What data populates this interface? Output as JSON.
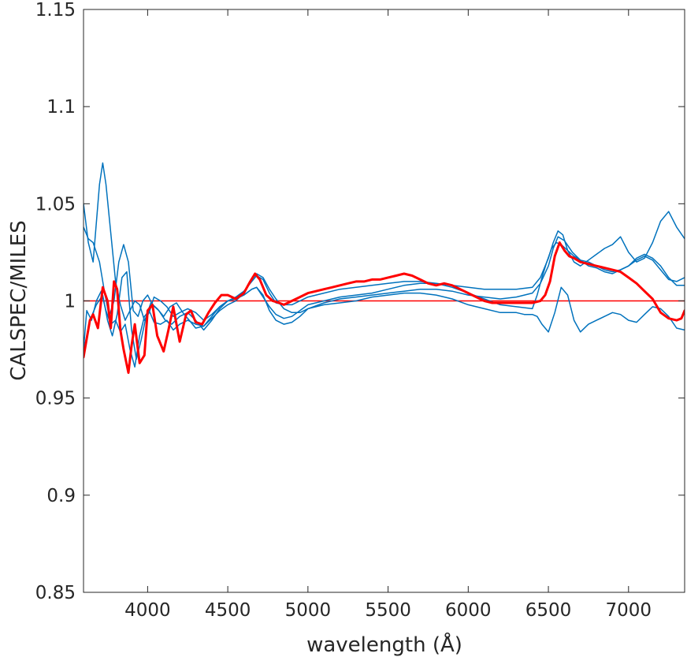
{
  "chart_data": {
    "type": "line",
    "title": "",
    "xlabel": "wavelength  (Å)",
    "ylabel": "CALSPEC/MILES",
    "xlim": [
      3600,
      7350
    ],
    "ylim": [
      0.85,
      1.15
    ],
    "xticks": [
      4000,
      4500,
      5000,
      5500,
      6000,
      6500,
      7000
    ],
    "xtick_labels": [
      "4000",
      "4500",
      "5000",
      "5500",
      "6000",
      "6500",
      "7000"
    ],
    "yticks": [
      0.85,
      0.9,
      0.95,
      1.0,
      1.05,
      1.1,
      1.15
    ],
    "ytick_labels": [
      "0.85",
      "0.9",
      "0.95",
      "1",
      "1.05",
      "1.1",
      "1.15"
    ],
    "grid": false,
    "box": true,
    "reference_line": {
      "y": 1.0,
      "color": "#ff0000"
    },
    "series": [
      {
        "color": "#ff0000",
        "linewidth": 3,
        "x": [
          3600,
          3640,
          3660,
          3690,
          3720,
          3750,
          3770,
          3790,
          3810,
          3830,
          3850,
          3880,
          3900,
          3920,
          3950,
          3980,
          4000,
          4030,
          4060,
          4100,
          4130,
          4160,
          4200,
          4240,
          4270,
          4300,
          4340,
          4380,
          4420,
          4460,
          4500,
          4550,
          4600,
          4640,
          4670,
          4700,
          4740,
          4780,
          4820,
          4850,
          4900,
          4950,
          5000,
          5050,
          5100,
          5150,
          5200,
          5250,
          5300,
          5350,
          5400,
          5450,
          5500,
          5550,
          5600,
          5650,
          5700,
          5750,
          5800,
          5850,
          5900,
          5950,
          6000,
          6050,
          6100,
          6150,
          6200,
          6250,
          6300,
          6350,
          6400,
          6450,
          6480,
          6510,
          6540,
          6570,
          6600,
          6630,
          6660,
          6700,
          6750,
          6800,
          6850,
          6900,
          6950,
          7000,
          7050,
          7100,
          7150,
          7200,
          7250,
          7300,
          7330,
          7350
        ],
        "y": [
          0.971,
          0.99,
          0.993,
          0.986,
          1.007,
          1.0,
          0.986,
          1.01,
          1.006,
          0.985,
          0.975,
          0.963,
          0.977,
          0.988,
          0.968,
          0.972,
          0.995,
          0.998,
          0.982,
          0.974,
          0.985,
          0.997,
          0.979,
          0.993,
          0.995,
          0.989,
          0.988,
          0.994,
          0.999,
          1.003,
          1.003,
          1.001,
          1.004,
          1.01,
          1.014,
          1.011,
          1.003,
          1.0,
          0.999,
          0.998,
          1.0,
          1.002,
          1.004,
          1.005,
          1.006,
          1.007,
          1.008,
          1.009,
          1.01,
          1.01,
          1.011,
          1.011,
          1.012,
          1.013,
          1.014,
          1.013,
          1.011,
          1.009,
          1.008,
          1.009,
          1.008,
          1.006,
          1.004,
          1.002,
          1.0,
          0.999,
          0.999,
          0.999,
          0.999,
          0.999,
          0.999,
          1.0,
          1.003,
          1.01,
          1.023,
          1.03,
          1.026,
          1.023,
          1.022,
          1.02,
          1.019,
          1.018,
          1.017,
          1.016,
          1.015,
          1.012,
          1.009,
          1.005,
          1.001,
          0.994,
          0.991,
          0.99,
          0.991,
          0.995
        ]
      },
      {
        "color": "#0072bd",
        "linewidth": 1.5,
        "x": [
          3600,
          3630,
          3660,
          3700,
          3720,
          3740,
          3770,
          3800,
          3830,
          3860,
          3890,
          3920,
          3950,
          3980,
          4010,
          4040,
          4080,
          4120,
          4160,
          4200,
          4250,
          4300,
          4350,
          4400,
          4450,
          4500,
          4550,
          4600,
          4650,
          4680,
          4720,
          4760,
          4800,
          4850,
          4900,
          4950,
          5000,
          5100,
          5200,
          5300,
          5400,
          5500,
          5600,
          5700,
          5800,
          5900,
          6000,
          6100,
          6200,
          6300,
          6400,
          6450,
          6500,
          6530,
          6560,
          6590,
          6620,
          6660,
          6700,
          6750,
          6800,
          6850,
          6900,
          6950,
          7000,
          7050,
          7100,
          7150,
          7200,
          7250,
          7300,
          7350
        ],
        "y": [
          1.05,
          1.03,
          1.02,
          1.06,
          1.071,
          1.06,
          1.035,
          1.01,
          0.998,
          0.99,
          0.995,
          1.0,
          0.998,
          0.99,
          0.994,
          1.002,
          1.0,
          0.997,
          0.992,
          0.994,
          0.996,
          0.994,
          0.99,
          0.993,
          0.997,
          1.0,
          1.001,
          1.003,
          1.006,
          1.007,
          1.002,
          0.997,
          0.993,
          0.991,
          0.992,
          0.995,
          0.998,
          1.0,
          1.002,
          1.003,
          1.004,
          1.006,
          1.008,
          1.009,
          1.009,
          1.008,
          1.007,
          1.006,
          1.006,
          1.006,
          1.007,
          1.012,
          1.022,
          1.03,
          1.036,
          1.034,
          1.026,
          1.02,
          1.018,
          1.021,
          1.024,
          1.027,
          1.029,
          1.033,
          1.025,
          1.02,
          1.022,
          1.03,
          1.041,
          1.046,
          1.038,
          1.032
        ]
      },
      {
        "color": "#0072bd",
        "linewidth": 1.5,
        "x": [
          3600,
          3630,
          3660,
          3700,
          3730,
          3760,
          3790,
          3820,
          3850,
          3880,
          3910,
          3940,
          3970,
          4000,
          4030,
          4070,
          4110,
          4150,
          4200,
          4250,
          4300,
          4350,
          4400,
          4450,
          4500,
          4550,
          4600,
          4650,
          4680,
          4720,
          4760,
          4800,
          4850,
          4900,
          4950,
          5000,
          5100,
          5200,
          5300,
          5400,
          5500,
          5600,
          5700,
          5800,
          5900,
          6000,
          6100,
          6200,
          6300,
          6400,
          6450,
          6500,
          6530,
          6560,
          6600,
          6650,
          6700,
          6750,
          6800,
          6850,
          6900,
          6950,
          7000,
          7050,
          7100,
          7150,
          7200,
          7250,
          7300,
          7350
        ],
        "y": [
          1.038,
          1.032,
          1.03,
          1.02,
          1.005,
          0.992,
          1.0,
          1.02,
          1.029,
          1.02,
          0.995,
          0.992,
          1.0,
          1.003,
          0.998,
          0.995,
          0.99,
          0.988,
          0.992,
          0.994,
          0.99,
          0.985,
          0.99,
          0.996,
          1.0,
          1.001,
          1.003,
          1.006,
          1.007,
          1.003,
          0.995,
          0.99,
          0.988,
          0.989,
          0.992,
          0.996,
          0.999,
          1.001,
          1.002,
          1.003,
          1.004,
          1.005,
          1.006,
          1.006,
          1.005,
          1.003,
          1.002,
          1.001,
          1.002,
          1.004,
          1.009,
          1.018,
          1.027,
          1.033,
          1.031,
          1.025,
          1.021,
          1.018,
          1.017,
          1.015,
          1.014,
          1.016,
          1.018,
          1.021,
          1.023,
          1.021,
          1.016,
          1.011,
          1.01,
          1.012
        ]
      },
      {
        "color": "#0072bd",
        "linewidth": 1.5,
        "x": [
          3600,
          3620,
          3650,
          3680,
          3710,
          3740,
          3770,
          3800,
          3830,
          3860,
          3890,
          3920,
          3950,
          3980,
          4010,
          4040,
          4080,
          4120,
          4160,
          4200,
          4250,
          4300,
          4350,
          4400,
          4450,
          4500,
          4550,
          4600,
          4650,
          4680,
          4720,
          4760,
          4800,
          4850,
          4900,
          4950,
          5000,
          5100,
          5200,
          5300,
          5400,
          5500,
          5600,
          5700,
          5800,
          5900,
          6000,
          6100,
          6200,
          6300,
          6400,
          6430,
          6460,
          6490,
          6520,
          6550,
          6580,
          6620,
          6660,
          6700,
          6750,
          6800,
          6850,
          6900,
          6950,
          7000,
          7050,
          7100,
          7150,
          7200,
          7250,
          7300,
          7350
        ],
        "y": [
          0.975,
          0.995,
          0.99,
          1.0,
          1.005,
          0.995,
          0.988,
          0.99,
          0.984,
          0.988,
          0.975,
          0.966,
          0.982,
          0.992,
          0.995,
          0.989,
          0.988,
          0.99,
          0.985,
          0.988,
          0.99,
          0.988,
          0.987,
          0.992,
          0.997,
          1.0,
          1.002,
          1.005,
          1.01,
          1.013,
          1.011,
          1.004,
          0.999,
          0.998,
          0.998,
          1.0,
          1.002,
          1.004,
          1.006,
          1.007,
          1.008,
          1.009,
          1.01,
          1.01,
          1.009,
          1.007,
          1.004,
          1.001,
          0.998,
          0.997,
          0.996,
          1.003,
          1.012,
          1.02,
          1.027,
          1.03,
          1.029,
          1.026,
          1.023,
          1.021,
          1.02,
          1.018,
          1.016,
          1.015,
          1.016,
          1.018,
          1.022,
          1.024,
          1.022,
          1.018,
          1.012,
          1.008,
          1.008
        ]
      },
      {
        "color": "#0072bd",
        "linewidth": 1.5,
        "x": [
          3600,
          3640,
          3680,
          3720,
          3750,
          3780,
          3810,
          3840,
          3870,
          3900,
          3930,
          3960,
          3990,
          4020,
          4060,
          4100,
          4140,
          4180,
          4220,
          4260,
          4300,
          4350,
          4400,
          4450,
          4500,
          4550,
          4600,
          4650,
          4680,
          4720,
          4760,
          4800,
          4850,
          4900,
          4950,
          5000,
          5100,
          5200,
          5300,
          5400,
          5500,
          5600,
          5700,
          5800,
          5900,
          6000,
          6100,
          6200,
          6300,
          6350,
          6400,
          6430,
          6460,
          6500,
          6540,
          6580,
          6620,
          6660,
          6700,
          6750,
          6800,
          6850,
          6900,
          6950,
          7000,
          7050,
          7100,
          7150,
          7200,
          7250,
          7300,
          7350
        ],
        "y": [
          0.974,
          0.99,
          0.998,
          1.003,
          0.99,
          0.982,
          0.993,
          1.012,
          1.015,
          0.985,
          0.97,
          0.98,
          0.992,
          0.999,
          0.996,
          0.992,
          0.997,
          0.999,
          0.994,
          0.99,
          0.986,
          0.987,
          0.991,
          0.995,
          0.998,
          1.0,
          1.004,
          1.011,
          1.014,
          1.012,
          1.006,
          1.001,
          0.996,
          0.994,
          0.994,
          0.996,
          0.998,
          0.999,
          1.0,
          1.002,
          1.003,
          1.004,
          1.004,
          1.003,
          1.001,
          0.998,
          0.996,
          0.994,
          0.994,
          0.993,
          0.993,
          0.992,
          0.988,
          0.984,
          0.994,
          1.007,
          1.003,
          0.99,
          0.984,
          0.988,
          0.99,
          0.992,
          0.994,
          0.993,
          0.99,
          0.989,
          0.993,
          0.997,
          0.996,
          0.992,
          0.986,
          0.985
        ]
      }
    ]
  }
}
